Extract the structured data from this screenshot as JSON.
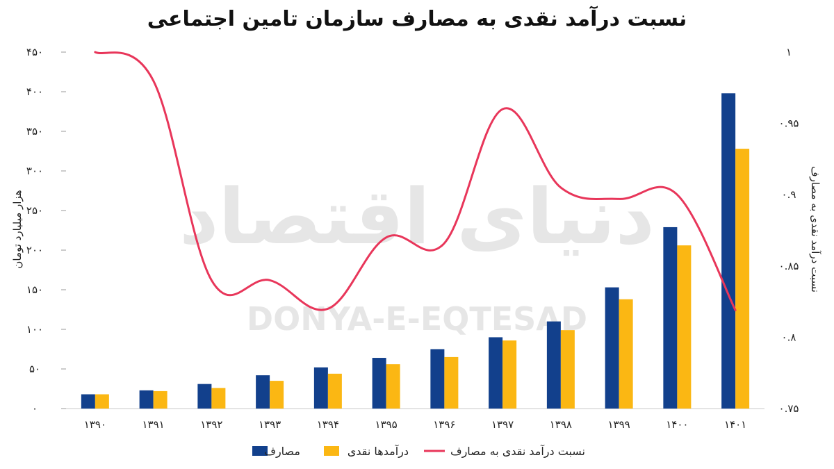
{
  "chart_data": {
    "type": "bar",
    "title": "نسبت درآمد نقدی به مصارف سازمان تامین اجتماعی",
    "watermark": {
      "latin": "DONYA-E-EQTESAD",
      "persian": "دنیای اقتصاد"
    },
    "categories": [
      "۱۳۹۰",
      "۱۳۹۱",
      "۱۳۹۲",
      "۱۳۹۳",
      "۱۳۹۴",
      "۱۳۹۵",
      "۱۳۹۶",
      "۱۳۹۷",
      "۱۳۹۸",
      "۱۳۹۹",
      "۱۴۰۰",
      "۱۴۰۱"
    ],
    "y_left": {
      "label": "هزار میلیارد تومان",
      "range": [
        0,
        450
      ],
      "ticks": [
        0,
        50,
        100,
        150,
        200,
        250,
        300,
        350,
        400,
        450
      ],
      "tick_labels": [
        "۰",
        "۵۰",
        "۱۰۰",
        "۱۵۰",
        "۲۰۰",
        "۲۵۰",
        "۳۰۰",
        "۳۵۰",
        "۴۰۰",
        "۴۵۰"
      ]
    },
    "y_right": {
      "label": "نسبت درآمد نقدی به مصارف",
      "range": [
        0.75,
        1.0
      ],
      "ticks": [
        0.75,
        0.8,
        0.85,
        0.9,
        0.95,
        1.0
      ],
      "tick_labels": [
        "۰.۷۵",
        "۰.۸",
        "۰.۸۵",
        "۰.۹",
        "۰.۹۵",
        "۱"
      ]
    },
    "series": [
      {
        "name": "مصارف",
        "type": "bar",
        "axis": "left",
        "color": "#12408c",
        "values": [
          18,
          23,
          31,
          42,
          52,
          64,
          75,
          90,
          110,
          153,
          229,
          398
        ]
      },
      {
        "name": "درآمدها نقدی",
        "type": "bar",
        "axis": "left",
        "color": "#fbb713",
        "values": [
          18,
          22,
          26,
          35,
          44,
          56,
          65,
          86,
          99,
          138,
          206,
          328
        ]
      },
      {
        "name": "نسبت درآمد نقدی به مصارف",
        "type": "line",
        "axis": "right",
        "color": "#e8365a",
        "values": [
          1.0,
          0.98,
          0.84,
          0.84,
          0.82,
          0.87,
          0.866,
          0.96,
          0.905,
          0.897,
          0.9,
          0.819
        ]
      }
    ],
    "legend_position": "bottom",
    "grid": false
  }
}
